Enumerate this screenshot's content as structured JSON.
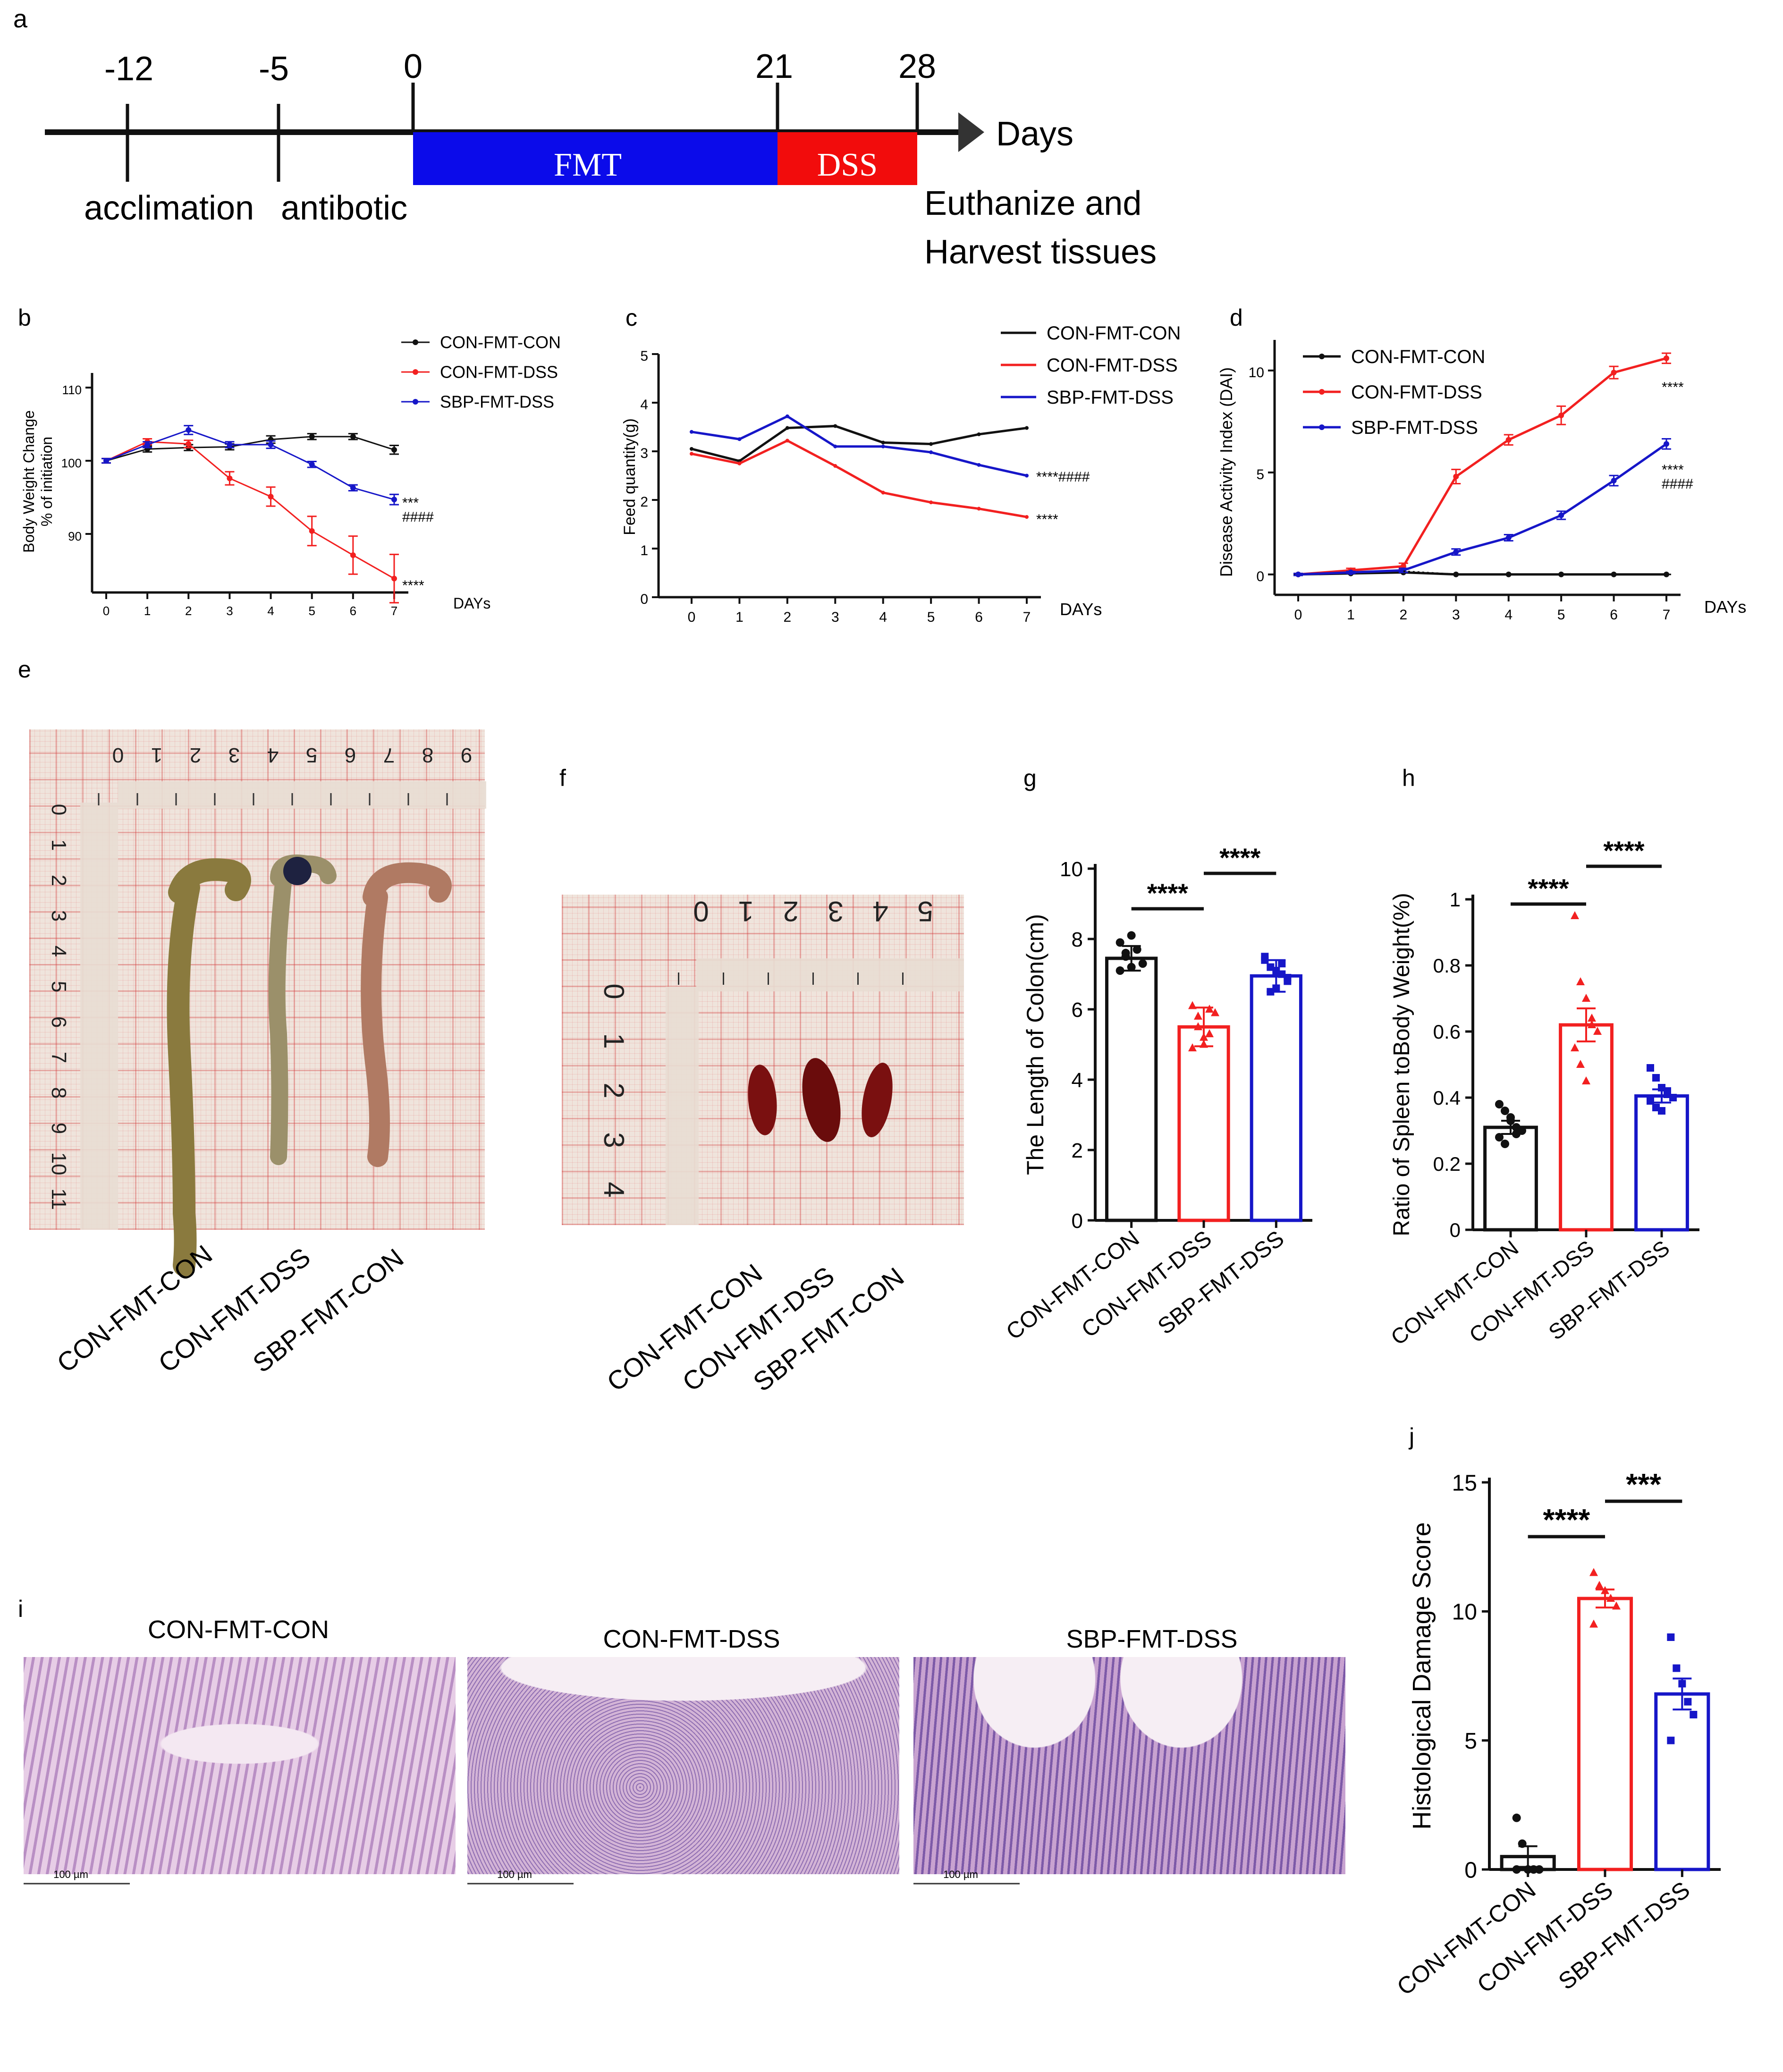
{
  "panel_labels": {
    "a": "a",
    "b": "b",
    "c": "c",
    "d": "d",
    "e": "e",
    "f": "f",
    "g": "g",
    "h": "h",
    "i": "i",
    "j": "j"
  },
  "timeline": {
    "ticks": [
      "-12",
      "-5",
      "0",
      "21",
      "28"
    ],
    "axis_label": "Days",
    "stages": [
      "acclimation",
      "antibotic"
    ],
    "fmt_label": "FMT",
    "dss_label": "DSS",
    "end_label_line1": "Euthanize and",
    "end_label_line2": "Harvest tissues",
    "colors": {
      "fmt": "#0b0bea",
      "dss": "#f20c0c"
    }
  },
  "groups": {
    "con_con": "CON-FMT-CON",
    "con_dss": "CON-FMT-DSS",
    "sbp_dss": "SBP-FMT-DSS",
    "sbp_con": "SBP-FMT-CON"
  },
  "colors": {
    "black": "#111111",
    "red": "#f22020",
    "blue": "#1616c8"
  },
  "chart_data": [
    {
      "id": "b",
      "type": "line",
      "title": "",
      "ylabel_line1": "Body Weight Change",
      "ylabel_line2": "% of initiation",
      "xlabel": "DAYs",
      "x": [
        0,
        1,
        2,
        3,
        4,
        5,
        6,
        7
      ],
      "ylim": [
        82,
        112
      ],
      "yticks": [
        90,
        100,
        110
      ],
      "series": [
        {
          "name": "CON-FMT-CON",
          "values": [
            100,
            101.6,
            101.8,
            101.9,
            102.9,
            103.3,
            103.3,
            101.5
          ],
          "err": [
            0.3,
            0.4,
            0.4,
            0.4,
            0.5,
            0.4,
            0.4,
            0.6
          ]
        },
        {
          "name": "CON-FMT-DSS",
          "values": [
            100,
            102.6,
            102.3,
            97.6,
            95.1,
            90.4,
            87.1,
            83.9
          ],
          "err": [
            0.3,
            0.4,
            0.5,
            0.9,
            1.3,
            2.0,
            2.6,
            3.3
          ]
        },
        {
          "name": "SBP-FMT-DSS",
          "values": [
            100,
            102.2,
            104.2,
            102.2,
            102.2,
            99.5,
            96.3,
            94.7
          ],
          "err": [
            0.3,
            0.4,
            0.6,
            0.4,
            0.5,
            0.4,
            0.4,
            0.7
          ]
        }
      ],
      "annotations": [
        "***",
        "####",
        "****"
      ]
    },
    {
      "id": "c",
      "type": "line",
      "ylabel": "Feed quantity(g)",
      "xlabel": "DAYs",
      "x": [
        0,
        1,
        2,
        3,
        4,
        5,
        6,
        7
      ],
      "ylim": [
        0,
        5
      ],
      "yticks": [
        0,
        1,
        2,
        3,
        4,
        5
      ],
      "series": [
        {
          "name": "CON-FMT-CON",
          "values": [
            3.05,
            2.8,
            3.48,
            3.52,
            3.18,
            3.15,
            3.35,
            3.48
          ]
        },
        {
          "name": "CON-FMT-DSS",
          "values": [
            2.95,
            2.75,
            3.22,
            2.7,
            2.15,
            1.95,
            1.82,
            1.65
          ]
        },
        {
          "name": "SBP-FMT-DSS",
          "values": [
            3.4,
            3.25,
            3.72,
            3.1,
            3.1,
            2.98,
            2.72,
            2.5
          ]
        }
      ],
      "annotations": [
        "****####",
        "****"
      ]
    },
    {
      "id": "d",
      "type": "line",
      "ylabel": "Disease Activity Index (DAI)",
      "xlabel": "DAYs",
      "x": [
        0,
        1,
        2,
        3,
        4,
        5,
        6,
        7
      ],
      "ylim": [
        -1,
        11.5
      ],
      "yticks": [
        0,
        5,
        10
      ],
      "series": [
        {
          "name": "CON-FMT-CON",
          "values": [
            0,
            0.05,
            0.1,
            0,
            0,
            0,
            0,
            0
          ],
          "err": [
            0,
            0,
            0,
            0,
            0,
            0,
            0,
            0
          ]
        },
        {
          "name": "CON-FMT-DSS",
          "values": [
            0,
            0.2,
            0.4,
            4.8,
            6.6,
            7.8,
            9.9,
            10.6
          ],
          "err": [
            0.05,
            0.1,
            0.15,
            0.35,
            0.25,
            0.45,
            0.3,
            0.25
          ]
        },
        {
          "name": "SBP-FMT-DSS",
          "values": [
            0,
            0.1,
            0.2,
            1.1,
            1.8,
            2.9,
            4.6,
            6.4
          ],
          "err": [
            0.05,
            0.05,
            0.1,
            0.15,
            0.15,
            0.2,
            0.25,
            0.25
          ]
        }
      ],
      "annotations": [
        "****",
        "****",
        "####"
      ]
    },
    {
      "id": "g",
      "type": "bar",
      "ylabel": "The Length of Colon(cm)",
      "categories": [
        "CON-FMT-CON",
        "CON-FMT-DSS",
        "SBP-FMT-DSS"
      ],
      "values": [
        7.45,
        5.5,
        6.95
      ],
      "err": [
        0.35,
        0.55,
        0.45
      ],
      "points": [
        [
          7.9,
          7.6,
          7.2,
          7.7,
          7.3,
          7.1,
          7.5,
          8.1
        ],
        [
          6.1,
          5.8,
          5.0,
          5.3,
          5.9,
          4.9,
          5.5,
          5.2,
          6.0
        ],
        [
          7.5,
          7.2,
          6.6,
          7.0,
          6.8,
          7.4,
          6.5,
          7.1,
          7.3,
          6.9
        ]
      ],
      "ylim": [
        0,
        10
      ],
      "yticks": [
        0,
        2,
        4,
        6,
        8,
        10
      ],
      "significance": [
        {
          "label": "****"
        },
        {
          "label": "****"
        }
      ]
    },
    {
      "id": "h",
      "type": "bar",
      "ylabel": "Ratio of Spleen toBody Weight(%)",
      "categories": [
        "CON-FMT-CON",
        "CON-FMT-DSS",
        "SBP-FMT-DSS"
      ],
      "values": [
        0.31,
        0.62,
        0.405
      ],
      "err": [
        0.02,
        0.05,
        0.02
      ],
      "points": [
        [
          0.38,
          0.36,
          0.34,
          0.31,
          0.3,
          0.28,
          0.26,
          0.33,
          0.29
        ],
        [
          0.95,
          0.75,
          0.7,
          0.64,
          0.6,
          0.55,
          0.5,
          0.45,
          0.62
        ],
        [
          0.49,
          0.46,
          0.43,
          0.41,
          0.4,
          0.39,
          0.37,
          0.36,
          0.42
        ]
      ],
      "ylim": [
        0,
        1.0
      ],
      "yticks": [
        0.0,
        0.2,
        0.4,
        0.6,
        0.8,
        1.0
      ],
      "significance": [
        {
          "label": "****"
        },
        {
          "label": "****"
        }
      ]
    },
    {
      "id": "j",
      "type": "bar",
      "ylabel": "Histological Damage Score",
      "categories": [
        "CON-FMT-CON",
        "CON-FMT-DSS",
        "SBP-FMT-DSS"
      ],
      "values": [
        0.5,
        10.5,
        6.8
      ],
      "err": [
        0.4,
        0.35,
        0.6
      ],
      "points": [
        [
          2.0,
          1.0,
          0,
          0,
          0,
          0
        ],
        [
          11.5,
          11.0,
          10.8,
          10.5,
          10.2,
          9.5
        ],
        [
          9.0,
          7.8,
          7.2,
          6.5,
          6.0,
          5.0
        ]
      ],
      "ylim": [
        0,
        15
      ],
      "yticks": [
        0,
        5,
        10,
        15
      ],
      "significance": [
        {
          "label": "****"
        },
        {
          "label": "***"
        }
      ]
    }
  ],
  "photos": {
    "colon_labels": [
      "CON-FMT-CON",
      "CON-FMT-DSS",
      "SBP-FMT-CON"
    ],
    "spleen_labels": [
      "CON-FMT-CON",
      "CON-FMT-DSS",
      "SBP-FMT-CON"
    ],
    "ruler_top_e": [
      "0",
      "1",
      "2",
      "3",
      "4",
      "5",
      "6",
      "7",
      "8",
      "9"
    ],
    "ruler_left_e": [
      "0",
      "1",
      "2",
      "3",
      "4",
      "5",
      "6",
      "7",
      "8",
      "9",
      "10",
      "11"
    ],
    "ruler_top_f": [
      "0",
      "1",
      "2",
      "3",
      "4",
      "5"
    ],
    "ruler_left_f": [
      "0",
      "1",
      "2",
      "3",
      "4"
    ]
  },
  "histology": {
    "titles": [
      "CON-FMT-CON",
      "CON-FMT-DSS",
      "SBP-FMT-DSS"
    ],
    "scale_bar": "100 µm"
  }
}
